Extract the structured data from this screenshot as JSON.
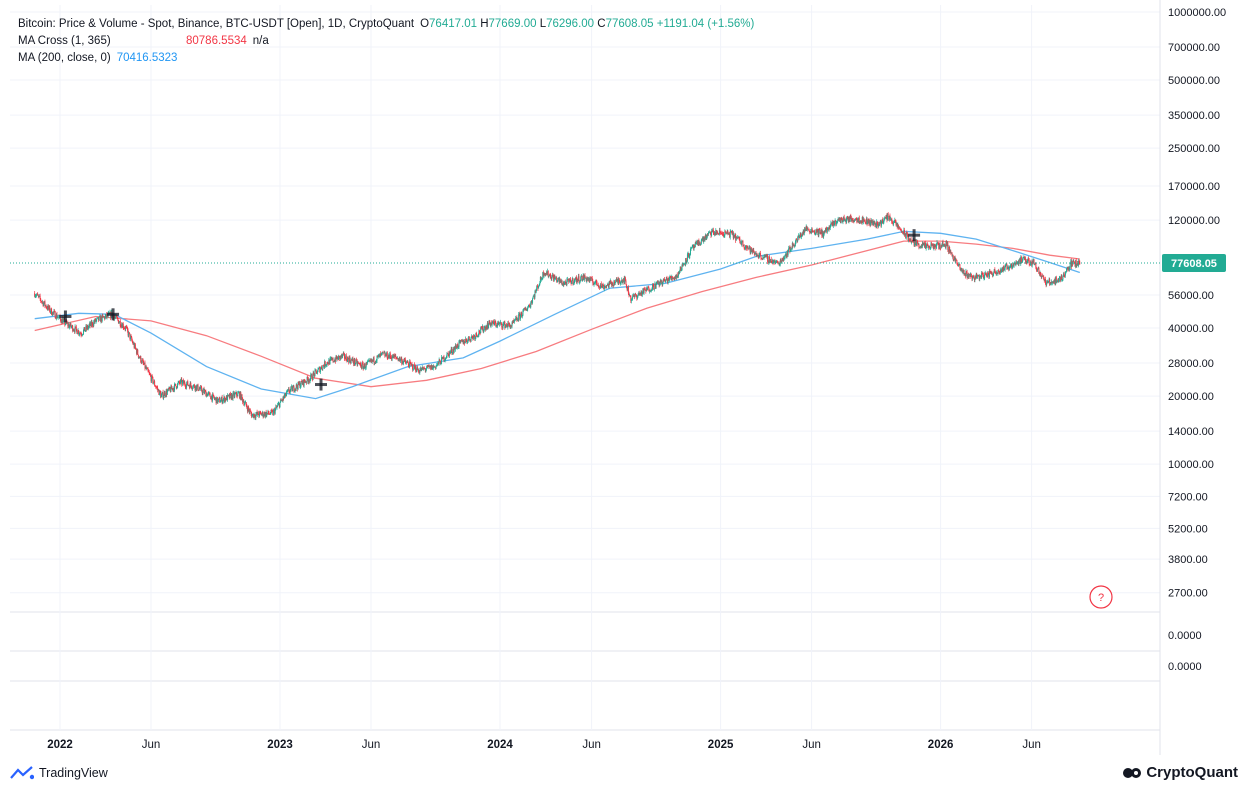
{
  "legend": {
    "title": "Bitcoin: Price & Volume - Spot, Binance, BTC-USDT [Open], 1D, CryptoQuant",
    "o_key": "O",
    "o_val": "76417.01",
    "h_key": "H",
    "h_val": "77669.00",
    "l_key": "L",
    "l_val": "76296.00",
    "c_key": "C",
    "c_val": "77608.05",
    "change": "+1191.04 (+1.56%)",
    "ma_cross_label": "MA Cross (1, 365)",
    "ma_cross_value": "80786.5534",
    "ma_cross_na": "n/a",
    "ma200_label": "MA (200, close, 0)",
    "ma200_value": "70416.5323"
  },
  "price_axis": {
    "ticks": [
      "1000000.00",
      "700000.00",
      "500000.00",
      "350000.00",
      "250000.00",
      "170000.00",
      "120000.00",
      "56000.00",
      "40000.00",
      "28000.00",
      "20000.00",
      "14000.00",
      "10000.00",
      "7200.00",
      "5200.00",
      "3800.00",
      "2700.00"
    ],
    "current_price": "77608.05",
    "pane2_tick": "0.0000",
    "pane3_tick": "0.0000"
  },
  "time_axis": {
    "labels": [
      "2022",
      "Jun",
      "2023",
      "Jun",
      "2024",
      "Jun",
      "2025",
      "Jun",
      "2026",
      "Jun"
    ]
  },
  "badge": {
    "symbol": "?"
  },
  "footer": {
    "left_brand": "TradingView",
    "right_brand": "CryptoQuant"
  },
  "colors": {
    "up": "#22ab94",
    "down": "#f23645",
    "ma365": "#f77c80",
    "ma200": "#5fb3f0",
    "grid": "#f0f3fa",
    "last_price": "#22ab94"
  },
  "chart_data": {
    "type": "line",
    "y_scale": "log",
    "ylim": [
      2700,
      1000000
    ],
    "series": [
      {
        "name": "Bitcoin: Price & Volume - Spot, Binance, BTC-USDT [Open]",
        "x": [
          "2021-11-20",
          "2021-12-15",
          "2022-01-10",
          "2022-02-05",
          "2022-03-01",
          "2022-03-28",
          "2022-04-20",
          "2022-05-12",
          "2022-06-18",
          "2022-07-20",
          "2022-08-15",
          "2022-09-20",
          "2022-10-25",
          "2022-11-15",
          "2022-12-20",
          "2023-01-15",
          "2023-02-20",
          "2023-03-18",
          "2023-04-15",
          "2023-05-20",
          "2023-06-20",
          "2023-07-15",
          "2023-08-20",
          "2023-09-15",
          "2023-10-25",
          "2023-11-20",
          "2023-12-15",
          "2024-01-20",
          "2024-02-20",
          "2024-03-14",
          "2024-04-15",
          "2024-05-20",
          "2024-06-20",
          "2024-07-25",
          "2024-08-05",
          "2024-09-20",
          "2024-10-20",
          "2024-11-15",
          "2024-12-17",
          "2025-01-20",
          "2025-02-25",
          "2025-04-07",
          "2025-05-22",
          "2025-06-20",
          "2025-07-14",
          "2025-08-14",
          "2025-09-20",
          "2025-10-06",
          "2025-10-25",
          "2025-11-15",
          "2025-12-10",
          "2026-01-10",
          "2026-02-05",
          "2026-02-25",
          "2026-03-20",
          "2026-04-20",
          "2026-05-15",
          "2026-06-05",
          "2026-06-25",
          "2026-07-20",
          "2026-08-05",
          "2026-08-20"
        ],
        "y": [
          57000,
          48000,
          42000,
          38000,
          43000,
          46000,
          40000,
          30000,
          20000,
          23000,
          22000,
          19000,
          20500,
          16500,
          16800,
          21000,
          24000,
          28000,
          30000,
          27000,
          30500,
          29500,
          26000,
          27000,
          34000,
          37000,
          42000,
          41000,
          51000,
          71000,
          63000,
          67000,
          61000,
          66000,
          54000,
          63000,
          68000,
          90000,
          106000,
          104000,
          86000,
          77000,
          110000,
          105000,
          120000,
          122000,
          115000,
          125000,
          110000,
          96000,
          91000,
          94000,
          71000,
          67000,
          69000,
          74000,
          80000,
          78000,
          63000,
          66000,
          77000,
          77608
        ]
      },
      {
        "name": "MA Cross (1, 365)",
        "x": [
          "2021-11-20",
          "2022-03-01",
          "2022-06-01",
          "2022-09-01",
          "2022-12-01",
          "2023-03-01",
          "2023-06-01",
          "2023-09-01",
          "2023-12-01",
          "2024-03-01",
          "2024-06-01",
          "2024-09-01",
          "2024-12-01",
          "2025-03-01",
          "2025-06-01",
          "2025-09-01",
          "2025-11-01",
          "2026-01-01",
          "2026-03-01",
          "2026-05-01",
          "2026-07-01",
          "2026-08-20"
        ],
        "y": [
          39000,
          45000,
          43000,
          37000,
          30000,
          24000,
          22000,
          23500,
          26500,
          31500,
          39500,
          49000,
          58000,
          67000,
          76000,
          88000,
          97000,
          97000,
          94000,
          90000,
          84000,
          80786.5534
        ]
      },
      {
        "name": "MA (200, close, 0)",
        "x": [
          "2021-11-20",
          "2022-02-01",
          "2022-04-01",
          "2022-06-01",
          "2022-09-01",
          "2022-12-01",
          "2023-03-01",
          "2023-05-01",
          "2023-08-01",
          "2023-11-01",
          "2024-01-01",
          "2024-04-01",
          "2024-07-01",
          "2024-10-01",
          "2025-01-01",
          "2025-03-01",
          "2025-06-01",
          "2025-09-01",
          "2025-11-01",
          "2026-01-01",
          "2026-03-01",
          "2026-05-01",
          "2026-07-01",
          "2026-08-20"
        ],
        "y": [
          44000,
          46500,
          46000,
          38000,
          27000,
          21500,
          19500,
          22000,
          27000,
          29500,
          35000,
          46000,
          60000,
          63000,
          73000,
          83000,
          90000,
          99000,
          107000,
          105000,
          99000,
          88000,
          78000,
          70416.5323
        ]
      }
    ],
    "markers": [
      {
        "date": "2022-01-10",
        "value": 45000,
        "kind": "cross"
      },
      {
        "date": "2022-03-30",
        "value": 46000,
        "kind": "cross"
      },
      {
        "date": "2023-03-10",
        "value": 22500,
        "kind": "cross"
      },
      {
        "date": "2025-11-18",
        "value": 103000,
        "kind": "cross"
      }
    ],
    "grid": true,
    "legend_position": "top-left"
  }
}
